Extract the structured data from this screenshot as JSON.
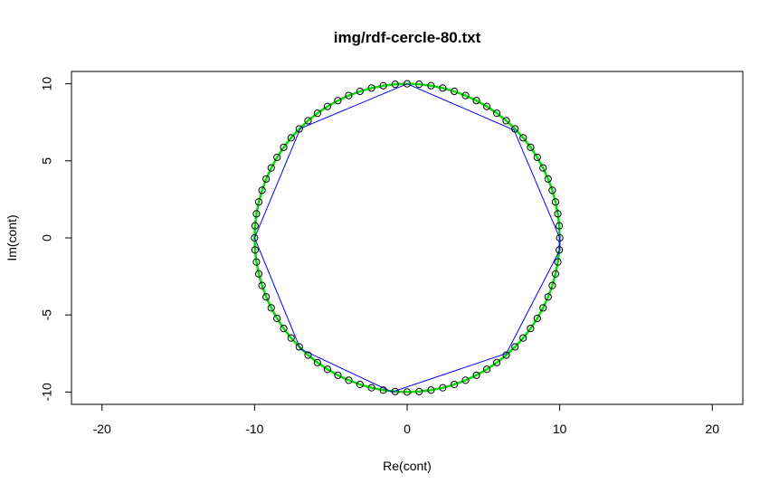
{
  "chart_data": {
    "type": "scatter",
    "title": "img/rdf-cercle-80.txt",
    "xlabel": "Re(cont)",
    "ylabel": "Im(cont)",
    "xlim": [
      -22,
      22
    ],
    "ylim": [
      10.8,
      -10.8
    ],
    "y_axis_inverted": true,
    "xticks": [
      -20,
      -10,
      0,
      10,
      20
    ],
    "yticks": [
      -10,
      -5,
      0,
      5,
      10
    ],
    "grid": false,
    "legend": "none",
    "series": [
      {
        "kind": "points",
        "marker": "open-circle",
        "color": "#000000",
        "shape": "circle",
        "center": [
          0,
          0
        ],
        "radius": 10,
        "count": 80
      },
      {
        "kind": "line",
        "color": "#00e000",
        "shape": "circle",
        "center": [
          0,
          0
        ],
        "radius": 10,
        "count": 80
      },
      {
        "kind": "polygon",
        "color": "#0000ff",
        "vertices": [
          [
            10,
            -0.8
          ],
          [
            6.5,
            -7.5
          ],
          [
            -1,
            -10
          ],
          [
            -7,
            -7.2
          ],
          [
            -10,
            0
          ],
          [
            -7,
            7.1
          ],
          [
            0,
            10
          ],
          [
            7,
            7
          ],
          [
            10,
            0
          ],
          [
            10,
            -0.8
          ]
        ]
      }
    ]
  },
  "colors": {
    "points": "#000000",
    "line": "#00e000",
    "polygon": "#0000ff"
  }
}
